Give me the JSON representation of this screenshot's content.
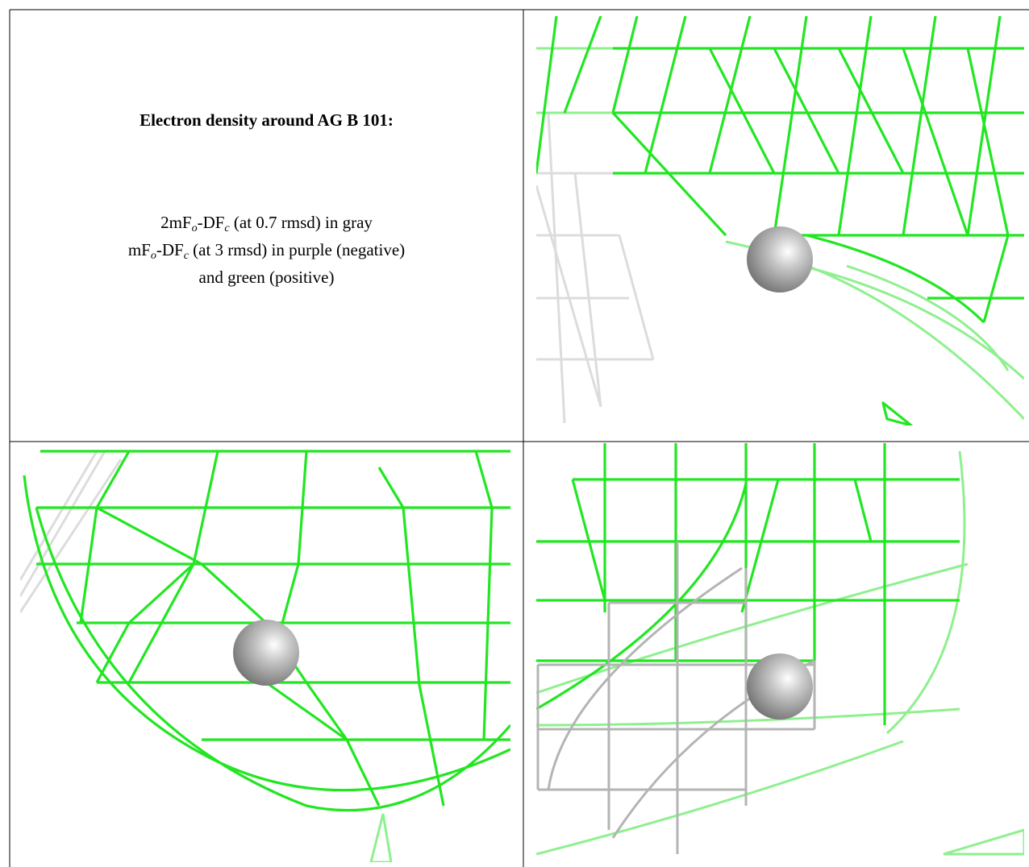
{
  "header": {
    "title": "Electron density around AG B 101:"
  },
  "legend": {
    "lines": [
      [
        "2mF",
        "o",
        "-DF",
        "c",
        " (at 0.7 rmsd) in gray"
      ],
      [
        "mF",
        "o",
        "-DF",
        "c",
        " (at 3 rmsd) in purple (negative)"
      ],
      [
        "and green (positive)"
      ]
    ]
  }
}
